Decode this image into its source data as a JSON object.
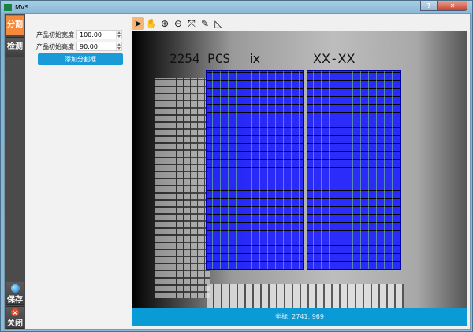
{
  "window": {
    "title": "MVS",
    "help_label": "?",
    "close_label": "✕"
  },
  "sidebar": {
    "items": [
      {
        "label": "分割",
        "active": true
      },
      {
        "label": "检测"
      },
      {
        "label": "保存",
        "icon": "globe-save-icon"
      },
      {
        "label": "关闭",
        "icon": "close-circle-icon"
      }
    ]
  },
  "panel": {
    "width_label": "产品初始宽度",
    "width_value": "100.00",
    "height_label": "产品初始高度",
    "height_value": "90.00",
    "add_button": "添加分割框"
  },
  "toolbar": {
    "tools": [
      "pointer",
      "pan",
      "zoom-in",
      "zoom-out",
      "fit",
      "edit-rect",
      "measure"
    ]
  },
  "image": {
    "text1": "2254 PCS",
    "text2": "ⅸ",
    "text3": "ⅩⅩ-ⅩⅩ"
  },
  "status": {
    "coords": "坐标: 2741, 969"
  },
  "colors": {
    "accent": "#0a9ad6",
    "active_tab": "#f58a3d",
    "overlay": "#1e1eff"
  }
}
